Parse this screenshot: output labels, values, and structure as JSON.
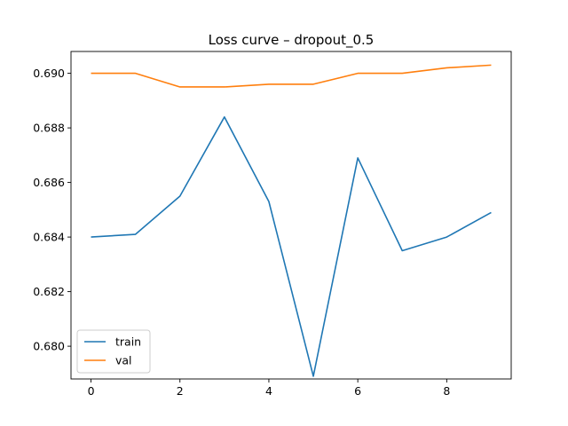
{
  "chart_data": {
    "type": "line",
    "title": "Loss curve – dropout_0.5",
    "xlabel": "",
    "ylabel": "",
    "x": [
      0,
      1,
      2,
      3,
      4,
      5,
      6,
      7,
      8,
      9
    ],
    "xlim": [
      -0.45,
      9.45
    ],
    "ylim": [
      0.6788,
      0.6908
    ],
    "xticks": [
      0,
      2,
      4,
      6,
      8
    ],
    "xtick_labels": [
      "0",
      "2",
      "4",
      "6",
      "8"
    ],
    "yticks": [
      0.68,
      0.682,
      0.684,
      0.686,
      0.688,
      0.69
    ],
    "ytick_labels": [
      "0.680",
      "0.682",
      "0.684",
      "0.686",
      "0.688",
      "0.690"
    ],
    "grid": false,
    "legend_position": "lower-left",
    "series": [
      {
        "name": "train",
        "color": "#1f77b4",
        "values": [
          0.684,
          0.6841,
          0.6855,
          0.6884,
          0.6853,
          0.6789,
          0.6869,
          0.6835,
          0.684,
          0.6849
        ]
      },
      {
        "name": "val",
        "color": "#ff7f0e",
        "values": [
          0.69,
          0.69,
          0.6895,
          0.6895,
          0.6896,
          0.6896,
          0.69,
          0.69,
          0.6902,
          0.6903
        ]
      }
    ]
  }
}
